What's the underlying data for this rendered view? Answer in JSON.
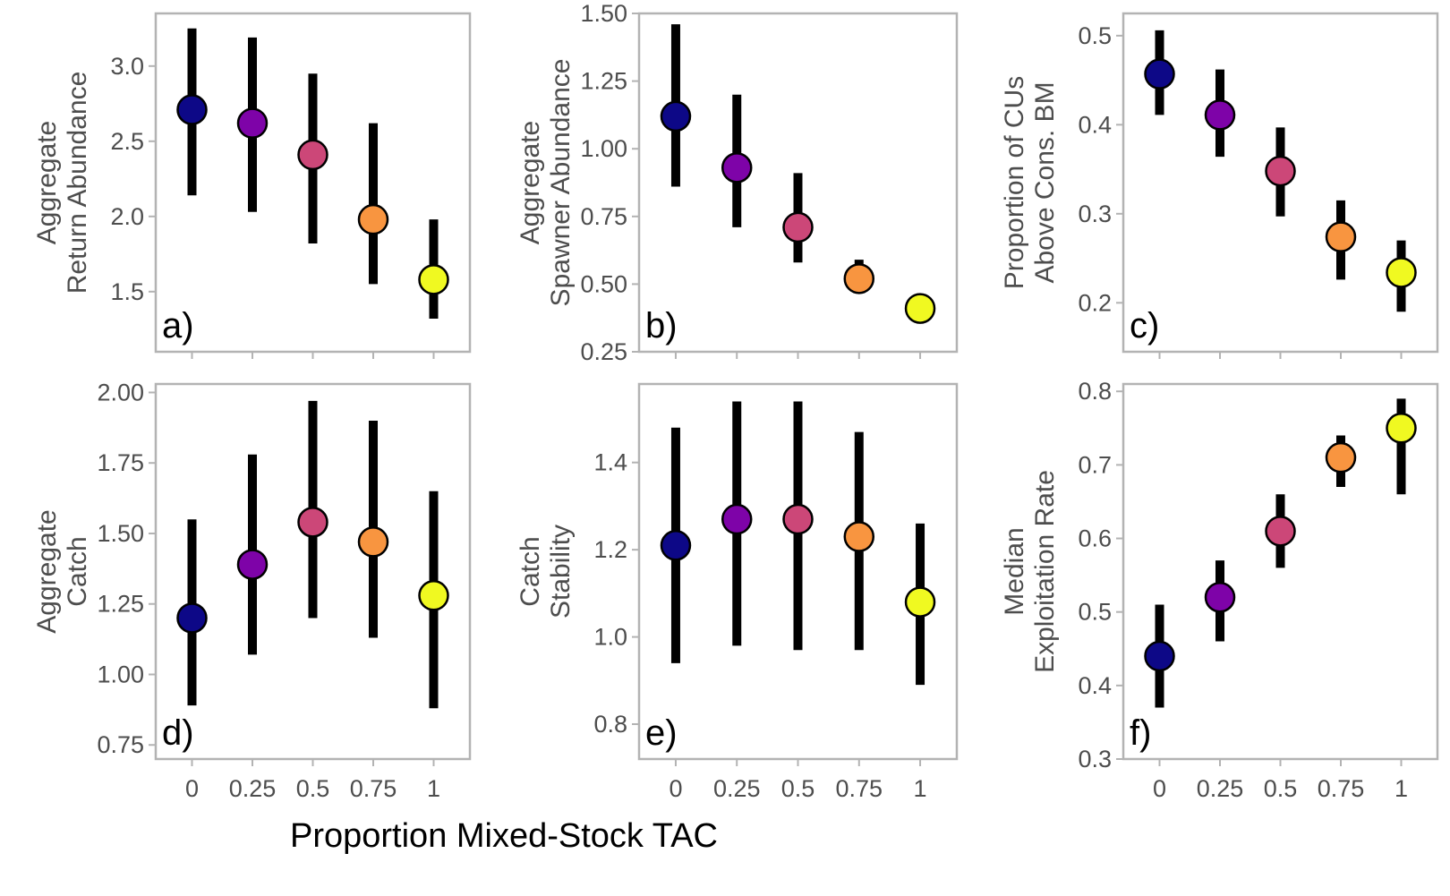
{
  "figure": {
    "xlabel": "Proportion Mixed-Stock TAC"
  },
  "colors": {
    "0": "#0d0887",
    "0.25": "#7e03a8",
    "0.5": "#cc4778",
    "0.75": "#f89540",
    "1": "#f0f921",
    "errorbar": "#000000",
    "frame": "#b3b3b3"
  },
  "chart_data": [
    {
      "type": "scatter",
      "tag": "a)",
      "ylabel": [
        "Aggregate",
        "Return Abundance"
      ],
      "categories": [
        "0",
        "0.25",
        "0.5",
        "0.75",
        "1"
      ],
      "ylim": [
        1.1,
        3.35
      ],
      "yticks": [
        "1.5",
        "2.0",
        "2.5",
        "3.0"
      ],
      "ytick_values": [
        1.5,
        2.0,
        2.5,
        3.0
      ],
      "values": [
        2.71,
        2.62,
        2.41,
        1.98,
        1.58
      ],
      "lower": [
        2.14,
        2.03,
        1.82,
        1.55,
        1.32
      ],
      "upper": [
        3.25,
        3.19,
        2.95,
        2.62,
        1.98
      ]
    },
    {
      "type": "scatter",
      "tag": "b)",
      "ylabel": [
        "Aggregate",
        "Spawner Abundance"
      ],
      "categories": [
        "0",
        "0.25",
        "0.5",
        "0.75",
        "1"
      ],
      "ylim": [
        0.25,
        1.5
      ],
      "yticks": [
        "0.25",
        "0.50",
        "0.75",
        "1.00",
        "1.25",
        "1.50"
      ],
      "ytick_values": [
        0.25,
        0.5,
        0.75,
        1.0,
        1.25,
        1.5
      ],
      "values": [
        1.12,
        0.93,
        0.71,
        0.52,
        0.41
      ],
      "lower": [
        0.86,
        0.71,
        0.58,
        0.5,
        0.4
      ],
      "upper": [
        1.46,
        1.2,
        0.91,
        0.59,
        0.42
      ]
    },
    {
      "type": "scatter",
      "tag": "c)",
      "ylabel": [
        "Proportion of CUs",
        "Above Cons. BM"
      ],
      "categories": [
        "0",
        "0.25",
        "0.5",
        "0.75",
        "1"
      ],
      "ylim": [
        0.145,
        0.525
      ],
      "yticks": [
        "0.2",
        "0.3",
        "0.4",
        "0.5"
      ],
      "ytick_values": [
        0.2,
        0.3,
        0.4,
        0.5
      ],
      "values": [
        0.457,
        0.411,
        0.348,
        0.274,
        0.234
      ],
      "lower": [
        0.411,
        0.364,
        0.297,
        0.226,
        0.19
      ],
      "upper": [
        0.506,
        0.462,
        0.397,
        0.315,
        0.27
      ]
    },
    {
      "type": "scatter",
      "tag": "d)",
      "ylabel": [
        "Aggregate",
        "Catch"
      ],
      "categories": [
        "0",
        "0.25",
        "0.5",
        "0.75",
        "1"
      ],
      "ylim": [
        0.7,
        2.03
      ],
      "yticks": [
        "0.75",
        "1.00",
        "1.25",
        "1.50",
        "1.75",
        "2.00"
      ],
      "ytick_values": [
        0.75,
        1.0,
        1.25,
        1.5,
        1.75,
        2.0
      ],
      "values": [
        1.2,
        1.39,
        1.54,
        1.47,
        1.28
      ],
      "lower": [
        0.89,
        1.07,
        1.2,
        1.13,
        0.88
      ],
      "upper": [
        1.55,
        1.78,
        1.97,
        1.9,
        1.65
      ]
    },
    {
      "type": "scatter",
      "tag": "e)",
      "ylabel": [
        "Catch",
        "Stability"
      ],
      "categories": [
        "0",
        "0.25",
        "0.5",
        "0.75",
        "1"
      ],
      "ylim": [
        0.72,
        1.58
      ],
      "yticks": [
        "0.8",
        "1.0",
        "1.2",
        "1.4"
      ],
      "ytick_values": [
        0.8,
        1.0,
        1.2,
        1.4
      ],
      "values": [
        1.21,
        1.27,
        1.27,
        1.23,
        1.08
      ],
      "lower": [
        0.94,
        0.98,
        0.97,
        0.97,
        0.89
      ],
      "upper": [
        1.48,
        1.54,
        1.54,
        1.47,
        1.26
      ]
    },
    {
      "type": "scatter",
      "tag": "f)",
      "ylabel": [
        "Median",
        "Exploitation Rate"
      ],
      "categories": [
        "0",
        "0.25",
        "0.5",
        "0.75",
        "1"
      ],
      "ylim": [
        0.3,
        0.81
      ],
      "yticks": [
        "0.3",
        "0.4",
        "0.5",
        "0.6",
        "0.7",
        "0.8"
      ],
      "ytick_values": [
        0.3,
        0.4,
        0.5,
        0.6,
        0.7,
        0.8
      ],
      "values": [
        0.44,
        0.52,
        0.61,
        0.71,
        0.75
      ],
      "lower": [
        0.37,
        0.46,
        0.56,
        0.67,
        0.66
      ],
      "upper": [
        0.51,
        0.57,
        0.66,
        0.74,
        0.79
      ]
    }
  ]
}
